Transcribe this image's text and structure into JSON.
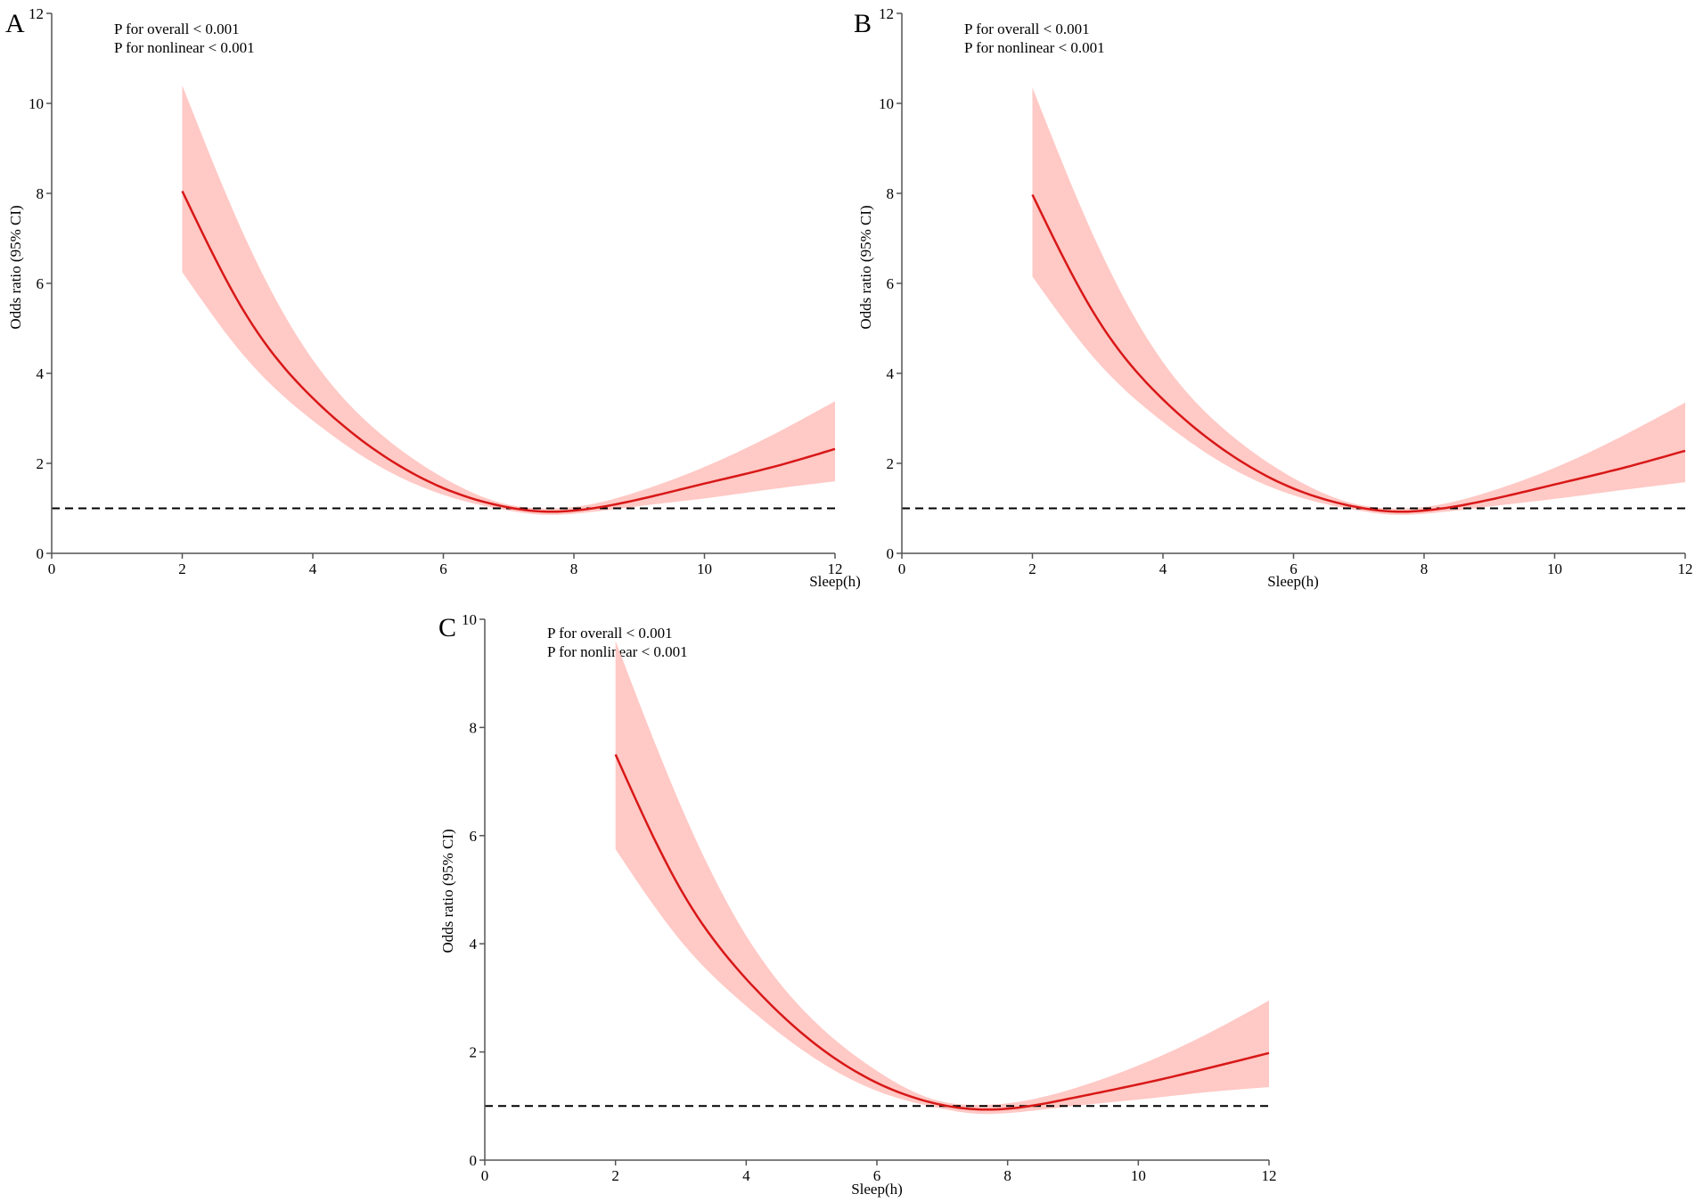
{
  "chart_data": [
    {
      "panel": "A",
      "type": "line",
      "annotations": [
        "P for overall < 0.001",
        "P for nonlinear < 0.001"
      ],
      "xlabel": "Sleep(h)",
      "ylabel": "Odds ratio (95% CI)",
      "xlim": [
        0,
        12
      ],
      "ylim": [
        0,
        12
      ],
      "xticks": [
        0,
        2,
        4,
        6,
        8,
        10,
        12
      ],
      "yticks": [
        0,
        2,
        4,
        6,
        8,
        10,
        12
      ],
      "reference_line": 1,
      "series": [
        {
          "name": "Odds ratio",
          "color": "#d81818",
          "x": [
            2,
            3,
            4,
            5,
            6,
            7,
            7.5,
            8,
            9,
            10,
            11,
            12
          ],
          "y": [
            8.05,
            5.25,
            3.45,
            2.25,
            1.45,
            1.02,
            0.93,
            0.95,
            1.2,
            1.55,
            1.9,
            2.32
          ],
          "lower": [
            6.25,
            4.3,
            2.95,
            1.95,
            1.3,
            0.95,
            0.86,
            0.88,
            1.05,
            1.22,
            1.42,
            1.6
          ],
          "upper": [
            10.4,
            6.9,
            4.3,
            2.7,
            1.68,
            1.08,
            1.0,
            1.03,
            1.38,
            1.92,
            2.6,
            3.38
          ]
        }
      ]
    },
    {
      "panel": "B",
      "type": "line",
      "annotations": [
        "P for overall < 0.001",
        "P for nonlinear < 0.001"
      ],
      "xlabel": "Sleep(h)",
      "ylabel": "Odds ratio (95% CI)",
      "xlim": [
        0,
        12
      ],
      "ylim": [
        0,
        12
      ],
      "xticks": [
        0,
        2,
        4,
        6,
        8,
        10,
        12
      ],
      "yticks": [
        0,
        2,
        4,
        6,
        8,
        10,
        12
      ],
      "reference_line": 1,
      "series": [
        {
          "name": "Odds ratio",
          "color": "#d81818",
          "x": [
            2,
            3,
            4,
            5,
            6,
            7,
            7.5,
            8,
            9,
            10,
            11,
            12
          ],
          "y": [
            7.97,
            5.2,
            3.42,
            2.23,
            1.44,
            1.02,
            0.93,
            0.95,
            1.19,
            1.53,
            1.88,
            2.28
          ],
          "lower": [
            6.15,
            4.25,
            2.92,
            1.93,
            1.29,
            0.95,
            0.86,
            0.88,
            1.04,
            1.21,
            1.4,
            1.58
          ],
          "upper": [
            10.35,
            6.85,
            4.25,
            2.68,
            1.67,
            1.08,
            1.0,
            1.03,
            1.37,
            1.9,
            2.58,
            3.35
          ]
        }
      ]
    },
    {
      "panel": "C",
      "type": "line",
      "annotations": [
        "P for overall < 0.001",
        "P for nonlinear < 0.001"
      ],
      "xlabel": "Sleep(h)",
      "ylabel": "Odds ratio (95% CI)",
      "xlim": [
        0,
        12
      ],
      "ylim": [
        0,
        10
      ],
      "xticks": [
        0,
        2,
        4,
        6,
        8,
        10,
        12
      ],
      "yticks": [
        0,
        2,
        4,
        6,
        8,
        10
      ],
      "reference_line": 1,
      "series": [
        {
          "name": "Odds ratio",
          "color": "#d81818",
          "x": [
            2,
            3,
            4,
            5,
            6,
            7,
            7.5,
            8,
            9,
            10,
            11,
            12
          ],
          "y": [
            7.5,
            5.0,
            3.35,
            2.2,
            1.43,
            1.02,
            0.94,
            0.95,
            1.15,
            1.4,
            1.68,
            1.98
          ],
          "lower": [
            5.75,
            4.05,
            2.85,
            1.92,
            1.28,
            0.95,
            0.86,
            0.87,
            1.0,
            1.12,
            1.25,
            1.35
          ],
          "upper": [
            9.6,
            6.55,
            4.15,
            2.62,
            1.65,
            1.08,
            1.02,
            1.05,
            1.32,
            1.75,
            2.3,
            2.95
          ]
        }
      ]
    }
  ]
}
